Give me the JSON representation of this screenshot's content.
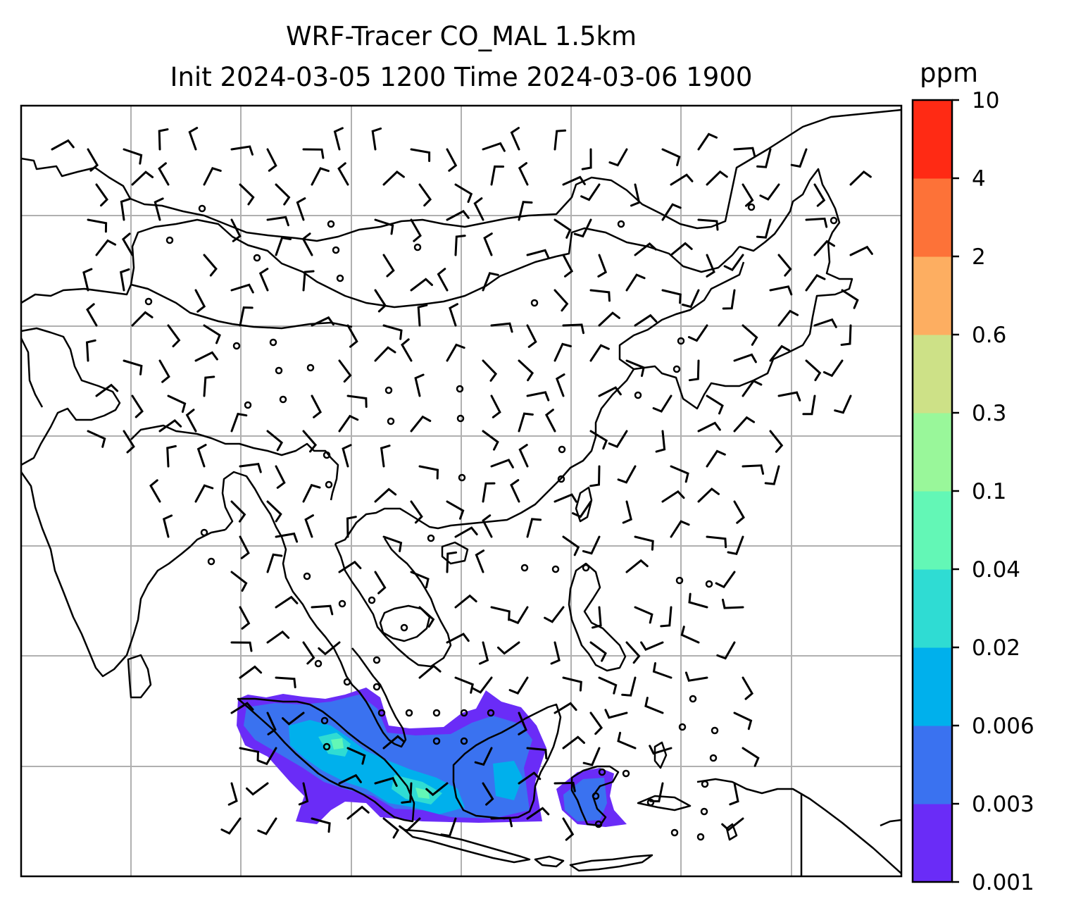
{
  "title_line1": "WRF-Tracer CO_MAL 1.5km",
  "title_line2": "Init 2024-03-05 1200 Time 2024-03-06 1900",
  "colorbar": {
    "unit": "ppm",
    "levels": [
      "0.001",
      "0.003",
      "0.006",
      "0.02",
      "0.04",
      "0.1",
      "0.3",
      "0.6",
      "2",
      "4",
      "10"
    ],
    "colors": [
      "#6a2cf7",
      "#3a72f0",
      "#00b0ec",
      "#2fdcd3",
      "#63f7b6",
      "#99f79a",
      "#cde187",
      "#fdae61",
      "#fd7238",
      "#ff2a14"
    ]
  },
  "map": {
    "gridline_color": "#b0b0b0",
    "coastline_color": "#000000",
    "tracer_region": "CO_MAL plume over Sumatra, Malacca Strait, Borneo and Java Sea",
    "wind_symbol": "wind-barb"
  }
}
